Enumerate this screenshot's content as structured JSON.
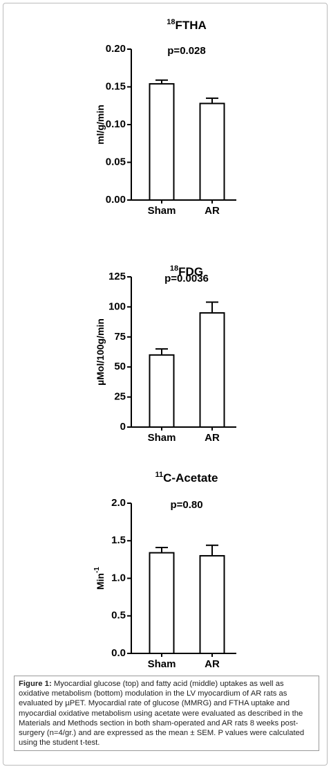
{
  "chart_data": [
    {
      "type": "bar",
      "title_sup": "18",
      "title": "FTHA",
      "annotation": "p=0.028",
      "ylabel": "ml/g/min",
      "categories": [
        "Sham",
        "AR"
      ],
      "values": [
        0.154,
        0.128
      ],
      "errors": [
        0.005,
        0.007
      ],
      "color": "#ffffff",
      "ylim": [
        0,
        0.2
      ],
      "yticks": [
        {
          "value": 0,
          "label": "0.00"
        },
        {
          "value": 0.05,
          "label": "0.05"
        },
        {
          "value": 0.1,
          "label": "0.10"
        },
        {
          "value": 0.15,
          "label": "0.15"
        },
        {
          "value": 0.2,
          "label": "0.20"
        }
      ]
    },
    {
      "type": "bar",
      "title_sup": "18",
      "title": "FDG",
      "annotation": "p=0.0036",
      "ylabel": "µMol/100g/min",
      "categories": [
        "Sham",
        "AR"
      ],
      "values": [
        60,
        95
      ],
      "errors": [
        5,
        9
      ],
      "color": "#ffffff",
      "ylim": [
        0,
        125
      ],
      "yticks": [
        0,
        25,
        50,
        75,
        100,
        125
      ]
    },
    {
      "type": "bar",
      "title_sup": "11",
      "title": "C-Acetate",
      "annotation": "p=0.80",
      "ylabel": "Min",
      "ylabel_sup": "-1",
      "categories": [
        "Sham",
        "AR"
      ],
      "values": [
        1.34,
        1.3
      ],
      "errors": [
        0.07,
        0.14
      ],
      "color": "#ffffff",
      "ylim": [
        0,
        2
      ],
      "yticks": [
        {
          "value": 0,
          "label": "0.0"
        },
        0.5,
        {
          "value": 1,
          "label": "1.0"
        },
        1.5,
        {
          "value": 2,
          "label": "2.0"
        }
      ]
    }
  ],
  "caption": {
    "label": "Figure 1:",
    "text": "Myocardial glucose (top) and fatty acid (middle) uptakes as well as oxidative metabolism (bottom) modulation in the LV myocardium of AR rats as evaluated by µPET. Myocardial rate of glucose (MMRG) and FTHA uptake and myocardial oxidative metabolism using acetate were evaluated as described in the Materials and Methods section in both sham-operated and AR rats 8 weeks post-surgery (n=4/gr.) and are expressed as the mean ± SEM. P values were calculated using the student t-test."
  }
}
